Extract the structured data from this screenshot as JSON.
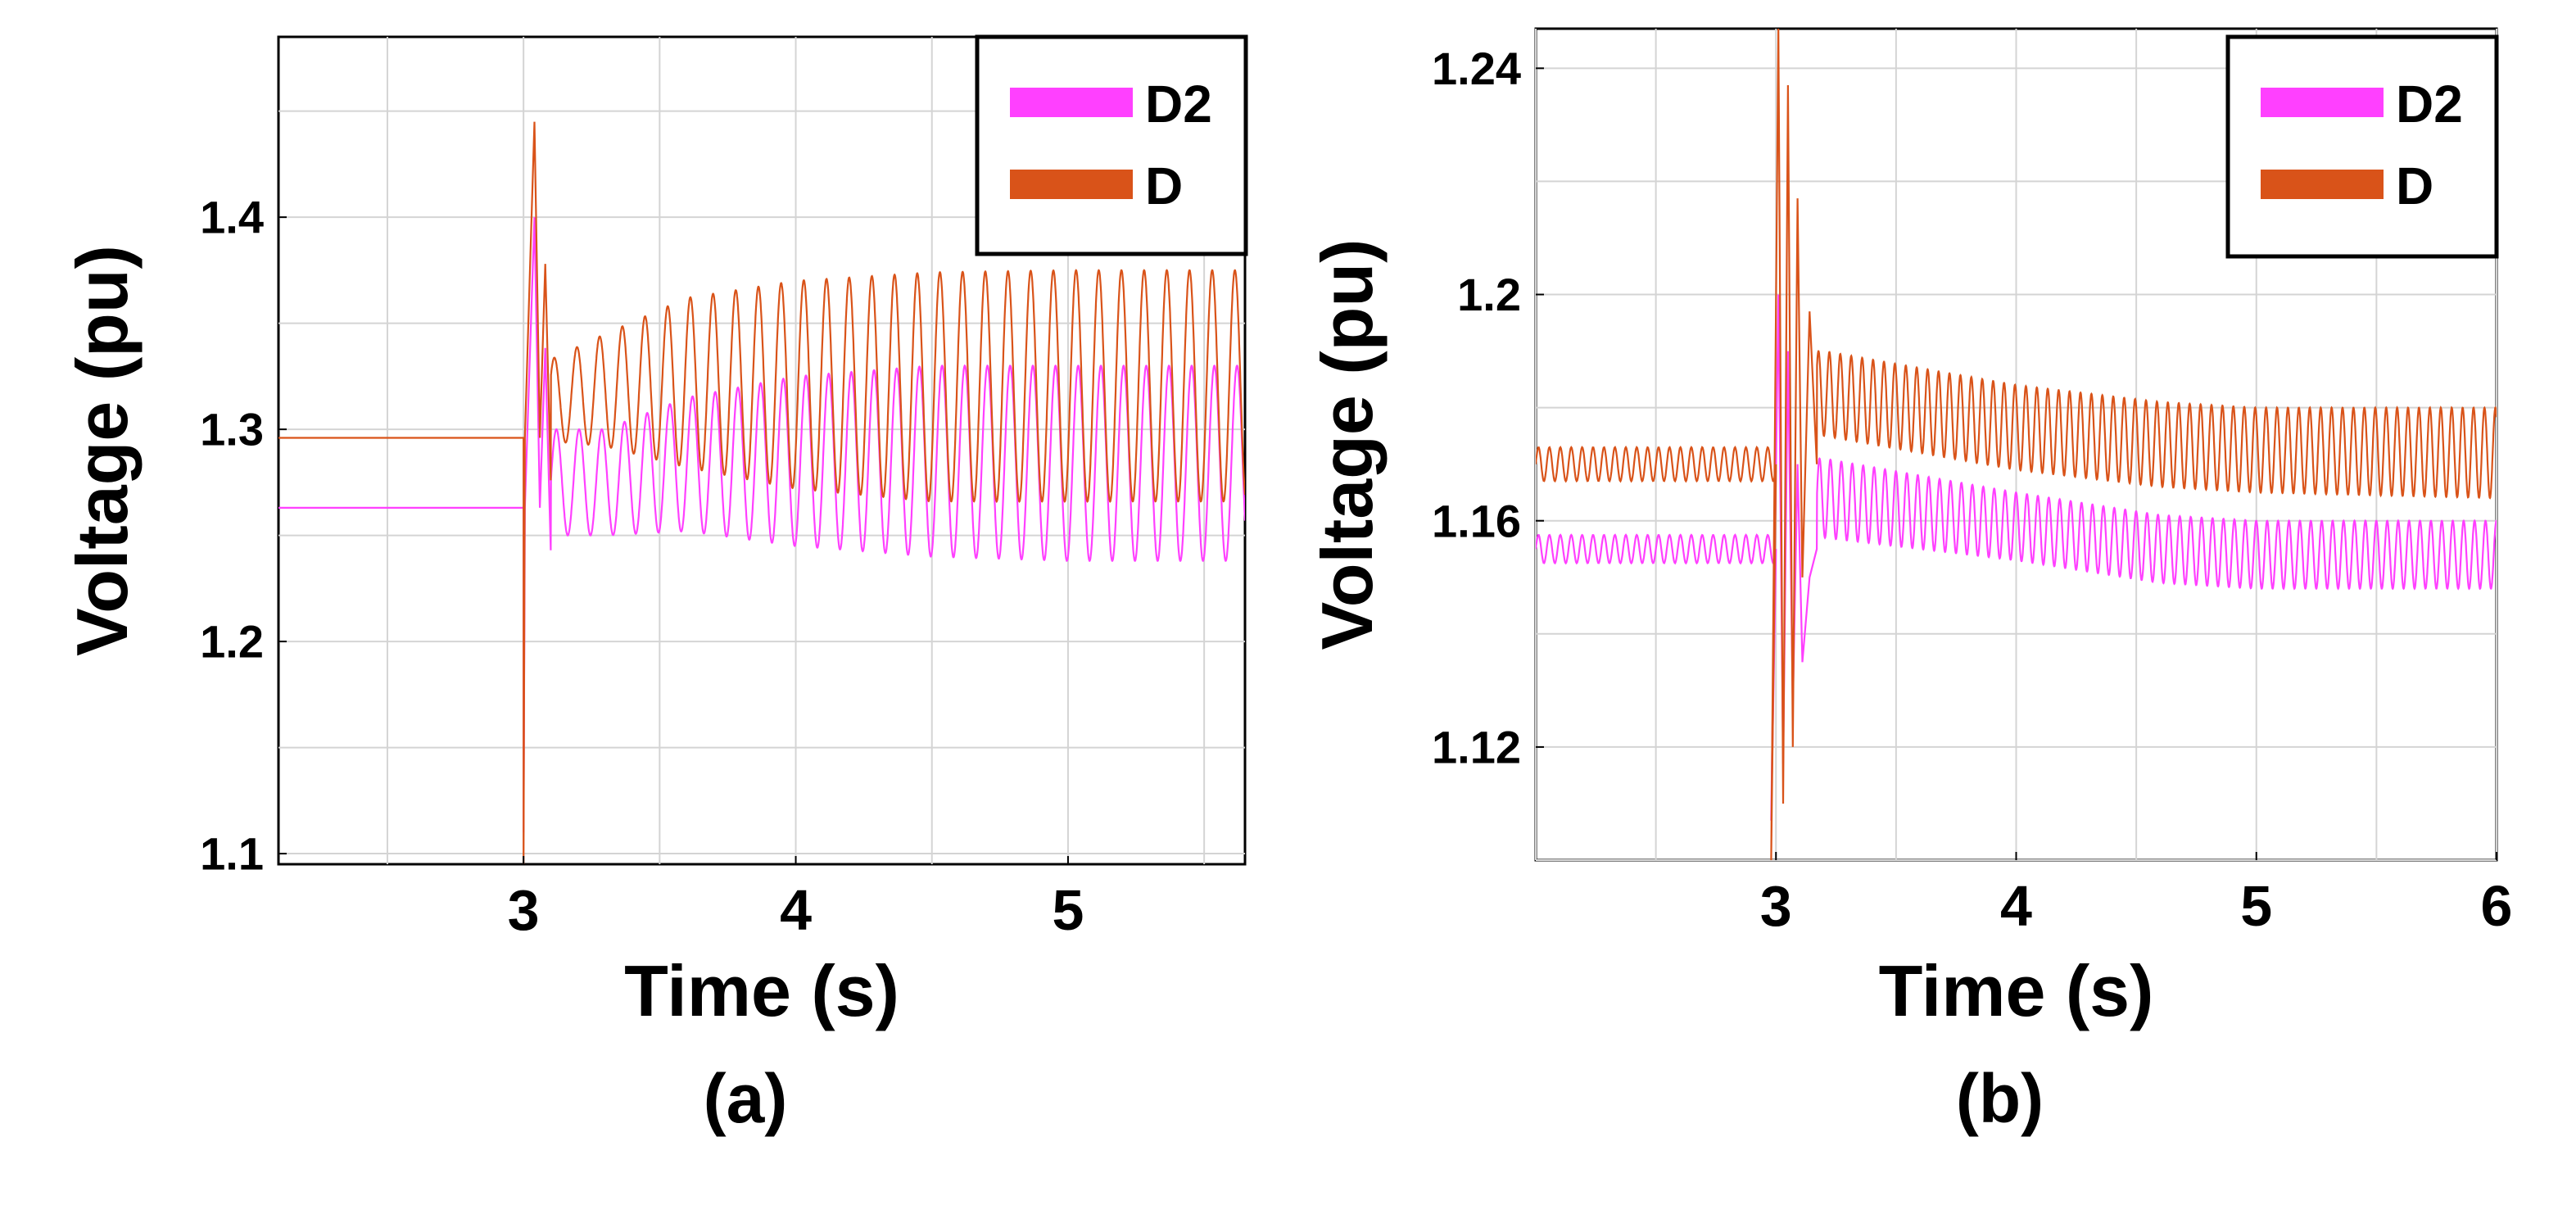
{
  "chart_data": [
    {
      "type": "line",
      "panel_label": "(a)",
      "xlabel": "Time (s)",
      "ylabel": "Voltage (pu)",
      "xlim": [
        2.1,
        5.65
      ],
      "ylim": [
        1.095,
        1.485
      ],
      "xticks": [
        3,
        4,
        5
      ],
      "xtick_labels": [
        "3",
        "4",
        "5"
      ],
      "yticks": [
        1.1,
        1.2,
        1.3,
        1.4
      ],
      "ytick_labels": [
        "1.1",
        "1.2",
        "1.3",
        "1.4"
      ],
      "grid": true,
      "legend_position": "top-right",
      "fault_time": 3.0,
      "series": [
        {
          "name": "D2",
          "color": "#ff40ff",
          "pre_fault": 1.263,
          "spike_max": 1.4,
          "spike_min": 1.11,
          "envelope_t": [
            3.05,
            3.3,
            3.6,
            4.0,
            4.5,
            5.0,
            5.65
          ],
          "envelope_upper": [
            1.3,
            1.3,
            1.315,
            1.325,
            1.33,
            1.33,
            1.33
          ],
          "envelope_lower": [
            1.25,
            1.25,
            1.252,
            1.245,
            1.24,
            1.238,
            1.238
          ],
          "oscillation_freq_hz": 12
        },
        {
          "name": "D",
          "color": "#d95319",
          "pre_fault": 1.296,
          "spike_max": 1.445,
          "spike_min": 1.095,
          "envelope_t": [
            3.05,
            3.3,
            3.6,
            4.0,
            4.5,
            5.0,
            5.65
          ],
          "envelope_upper": [
            1.33,
            1.345,
            1.362,
            1.37,
            1.374,
            1.375,
            1.375
          ],
          "envelope_lower": [
            1.295,
            1.292,
            1.282,
            1.272,
            1.266,
            1.266,
            1.266
          ],
          "oscillation_freq_hz": 12
        }
      ]
    },
    {
      "type": "line",
      "panel_label": "(b)",
      "xlabel": "Time (s)",
      "ylabel": "Voltage (pu)",
      "xlim": [
        2.0,
        6.0
      ],
      "ylim": [
        1.1,
        1.247
      ],
      "xticks": [
        3,
        4,
        5,
        6
      ],
      "xtick_labels": [
        "3",
        "4",
        "5",
        "6"
      ],
      "yticks": [
        1.12,
        1.16,
        1.2,
        1.24
      ],
      "ytick_labels": [
        "1.12",
        "1.16",
        "1.2",
        "1.24"
      ],
      "grid": true,
      "legend_position": "top-right",
      "fault_time": 3.0,
      "series": [
        {
          "name": "D2",
          "color": "#ff40ff",
          "pre_fault": 1.155,
          "pre_amp": 0.0025,
          "spike_max": 1.2,
          "spike_min": 1.107,
          "envelope_t": [
            3.2,
            3.6,
            4.0,
            4.6,
            5.0,
            6.0
          ],
          "envelope_upper": [
            1.171,
            1.168,
            1.165,
            1.161,
            1.16,
            1.16
          ],
          "envelope_lower": [
            1.157,
            1.155,
            1.153,
            1.149,
            1.148,
            1.148
          ],
          "oscillation_freq_hz": 22
        },
        {
          "name": "D",
          "color": "#d95319",
          "pre_fault": 1.17,
          "pre_amp": 0.003,
          "spike_max": 1.247,
          "spike_min": 1.1,
          "envelope_t": [
            3.2,
            3.6,
            4.0,
            4.6,
            5.0,
            6.0
          ],
          "envelope_upper": [
            1.19,
            1.187,
            1.184,
            1.181,
            1.18,
            1.18
          ],
          "envelope_lower": [
            1.175,
            1.172,
            1.169,
            1.166,
            1.165,
            1.164
          ],
          "oscillation_freq_hz": 22
        }
      ]
    }
  ]
}
